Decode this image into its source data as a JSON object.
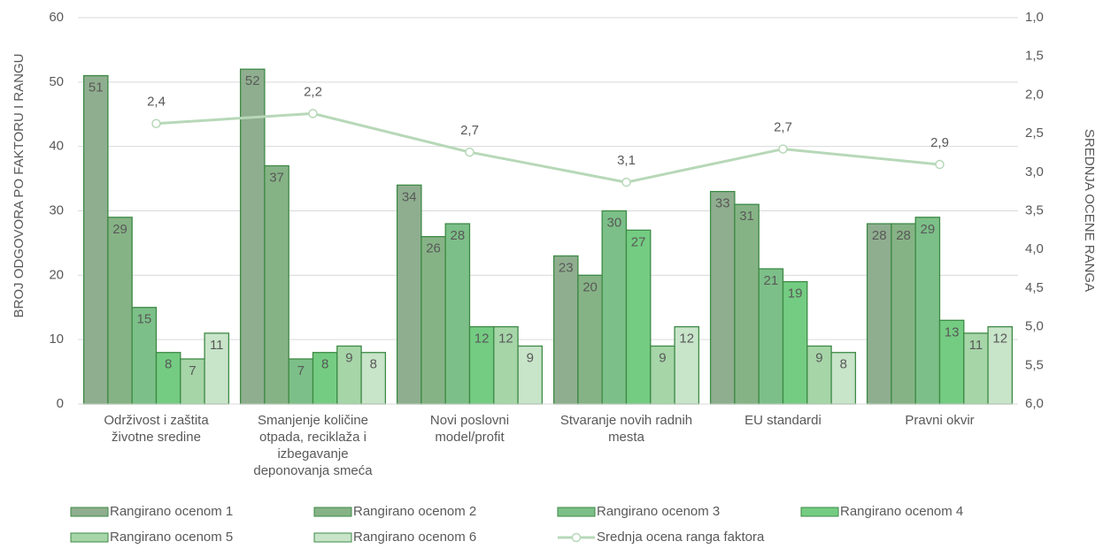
{
  "chart_data": {
    "type": "bar",
    "categories": [
      "Održivost i zaštita životne sredine",
      "Smanjenje količine otpada, reciklaža i izbegavanje deponovanja smeća",
      "Novi poslovni model/profit",
      "Stvaranje novih radnih mesta",
      "EU standardi",
      "Pravni okvir"
    ],
    "series": [
      {
        "name": "Rangirano ocenom 1",
        "color": "#8fae8f",
        "values": [
          51,
          52,
          34,
          23,
          33,
          28
        ]
      },
      {
        "name": "Rangirano ocenom 2",
        "color": "#86b386",
        "values": [
          29,
          37,
          26,
          20,
          31,
          28
        ]
      },
      {
        "name": "Rangirano ocenom 3",
        "color": "#7cbf88",
        "values": [
          15,
          7,
          28,
          30,
          21,
          29
        ]
      },
      {
        "name": "Rangirano ocenom 4",
        "color": "#74cc82",
        "values": [
          8,
          8,
          12,
          27,
          19,
          13
        ]
      },
      {
        "name": "Rangirano ocenom 5",
        "color": "#a6d5a8",
        "values": [
          7,
          9,
          12,
          9,
          9,
          11
        ]
      },
      {
        "name": "Rangirano ocenom 6",
        "color": "#c8e4c9",
        "values": [
          11,
          8,
          9,
          12,
          8,
          12
        ]
      },
      {
        "name": "Srednja ocena ranga faktora",
        "color": "#b7d8b8",
        "type": "line",
        "axis": "y2",
        "values": [
          2.37,
          2.24,
          2.74,
          3.13,
          2.7,
          2.9
        ],
        "value_labels": [
          "2,4",
          "2,2",
          "2,7",
          "3,1",
          "2,7",
          "2,9"
        ]
      }
    ],
    "ylabel": "BROJ ODGOVORA PO FAKTORU I RANGU",
    "y2label": "SREDNJA OCENE RANGA",
    "ylim": [
      0,
      60
    ],
    "yticks": [
      0,
      10,
      20,
      30,
      40,
      50,
      60
    ],
    "y2lim": [
      1,
      6
    ],
    "y2_inverted": true,
    "y2ticks": [
      {
        "value": 1,
        "label": "1,0"
      },
      {
        "value": 1.5,
        "label": "1,5"
      },
      {
        "value": 2,
        "label": "2,0"
      },
      {
        "value": 2.5,
        "label": "2,5"
      },
      {
        "value": 3,
        "label": "3,0"
      },
      {
        "value": 3.5,
        "label": "3,5"
      },
      {
        "value": 4,
        "label": "4,0"
      },
      {
        "value": 4.5,
        "label": "4,5"
      },
      {
        "value": 5,
        "label": "5,0"
      },
      {
        "value": 5.5,
        "label": "5,5"
      },
      {
        "value": 6,
        "label": "6,0"
      }
    ],
    "grid": true,
    "legend": "bottom"
  }
}
